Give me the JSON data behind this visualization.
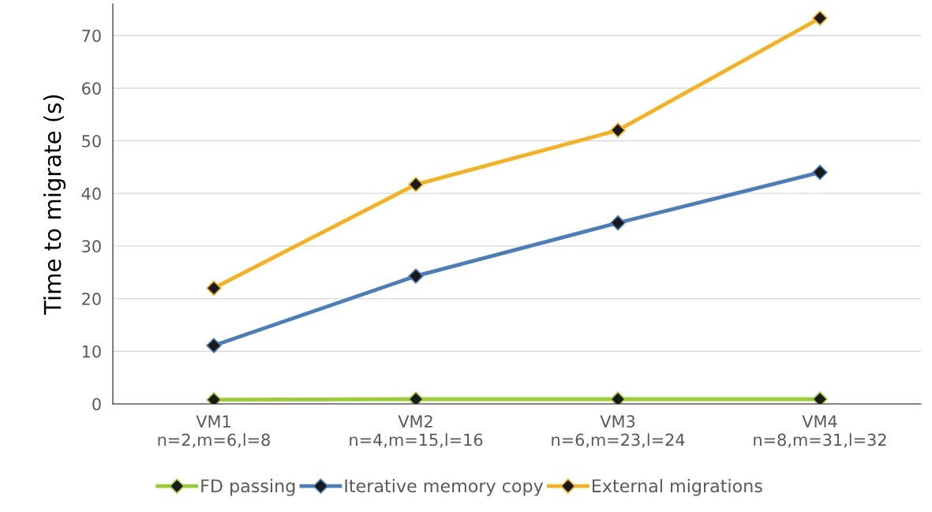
{
  "chart_data": {
    "type": "line",
    "ylabel": "Time to migrate (s)",
    "categories": [
      "VM1\nn=2,m=6,l=8",
      "VM2\nn=4,m=15,l=16",
      "VM3\nn=6,m=23,l=24",
      "VM4\nn=8,m=31,l=32"
    ],
    "series": [
      {
        "name": "FD passing",
        "color": "#9acd32",
        "values": [
          0.8,
          0.9,
          0.9,
          0.9
        ]
      },
      {
        "name": "Iterative memory copy",
        "color": "#4a7ebb",
        "values": [
          11.1,
          24.3,
          34.4,
          44
        ]
      },
      {
        "name": "External migrations",
        "color": "#f5b120",
        "values": [
          22,
          41.7,
          52,
          73.3
        ]
      }
    ],
    "ylim": [
      0,
      76
    ],
    "yticks": [
      0,
      10,
      20,
      30,
      40,
      50,
      60,
      70
    ],
    "grid": "y",
    "legend": "bottom",
    "marker": "diamond",
    "line_style": "solid"
  }
}
